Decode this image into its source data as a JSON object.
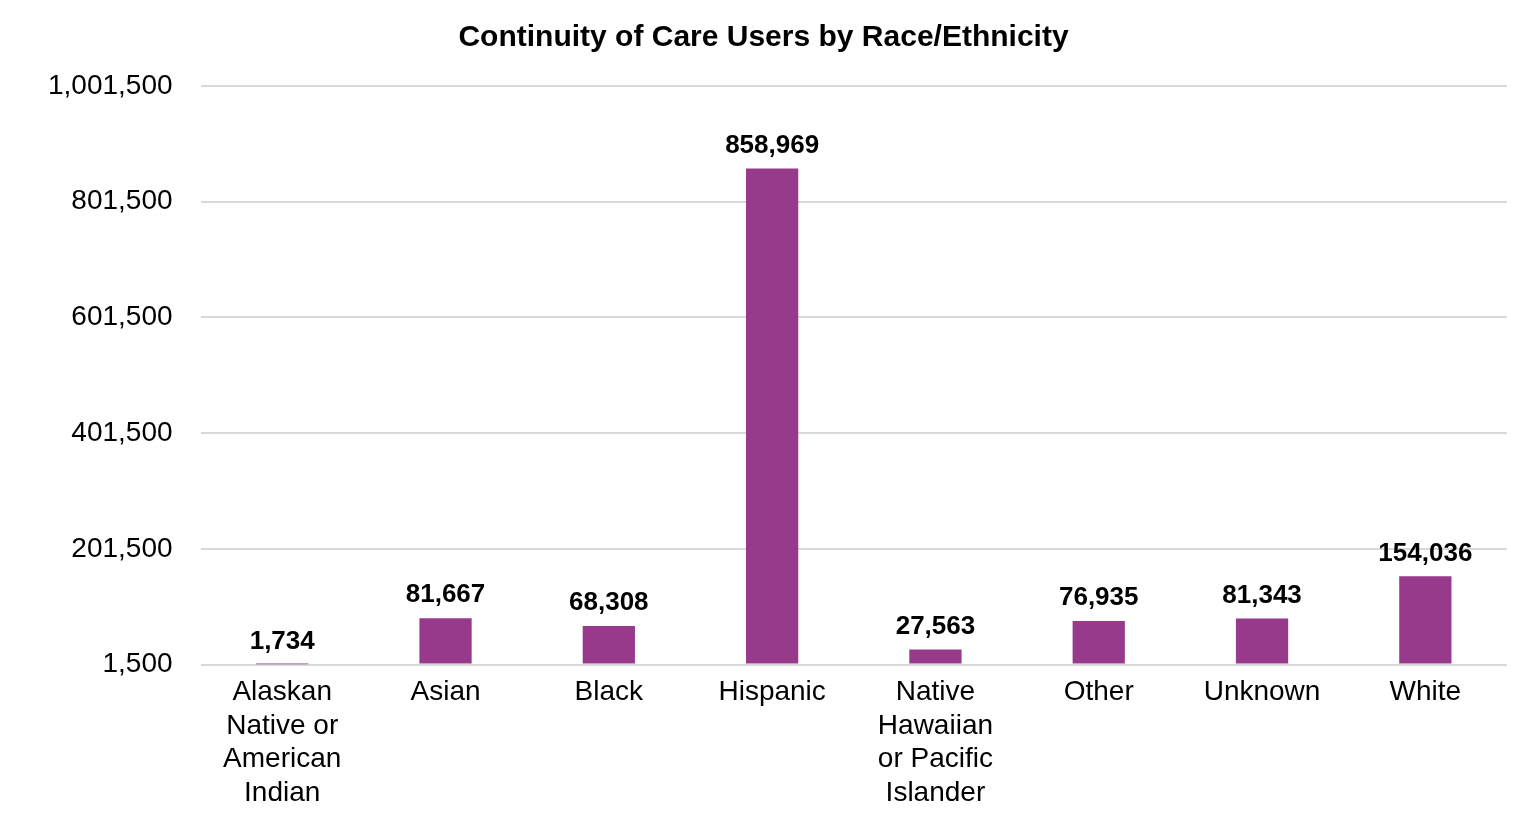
{
  "chart_data": {
    "type": "bar",
    "title": "Continuity of Care Users by Race/Ethnicity",
    "categories": [
      "Alaskan Native or American Indian",
      "Asian",
      "Black",
      "Hispanic",
      "Native Hawaiian or Pacific Islander",
      "Other",
      "Unknown",
      "White"
    ],
    "values": [
      1734,
      81667,
      68308,
      858969,
      27563,
      76935,
      81343,
      154036
    ],
    "value_labels": [
      "1,734",
      "81,667",
      "68,308",
      "858,969",
      "27,563",
      "76,935",
      "81,343",
      "154,036"
    ],
    "color": "#983a8c",
    "ylim": [
      1500,
      1001500
    ],
    "yticks": [
      {
        "value": 1500,
        "label": "1,500"
      },
      {
        "value": 201500,
        "label": "201,500"
      },
      {
        "value": 401500,
        "label": "401,500"
      },
      {
        "value": 601500,
        "label": "601,500"
      },
      {
        "value": 801500,
        "label": "801,500"
      },
      {
        "value": 1001500,
        "label": "1,001,500"
      }
    ],
    "grid": "y",
    "legend": false
  }
}
